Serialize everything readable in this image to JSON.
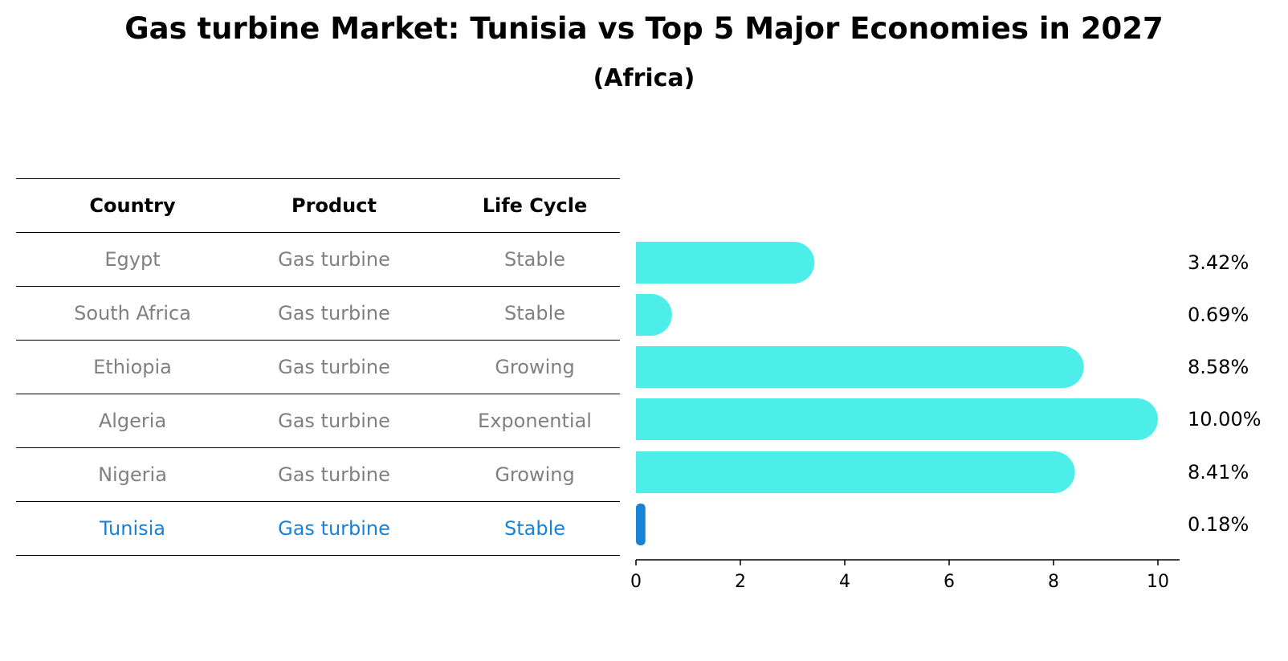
{
  "title": "Gas turbine Market: Tunisia vs Top 5 Major Economies in 2027",
  "subtitle": "(Africa)",
  "table": {
    "headers": [
      "Country",
      "Product",
      "Life Cycle"
    ],
    "rows": [
      [
        "Egypt",
        "Gas turbine",
        "Stable"
      ],
      [
        "South Africa",
        "Gas turbine",
        "Stable"
      ],
      [
        "Ethiopia",
        "Gas turbine",
        "Growing"
      ],
      [
        "Algeria",
        "Gas turbine",
        "Exponential"
      ],
      [
        "Nigeria",
        "Gas turbine",
        "Growing"
      ],
      [
        "Tunisia",
        "Gas turbine",
        "Stable"
      ]
    ],
    "highlight_row": 5
  },
  "colors": {
    "bar": "#4deeea",
    "highlight": "#1a82d6",
    "muted_text": "#808080"
  },
  "chart_data": {
    "type": "bar",
    "orientation": "horizontal",
    "categories": [
      "Egypt",
      "South Africa",
      "Ethiopia",
      "Algeria",
      "Nigeria",
      "Tunisia"
    ],
    "values": [
      3.42,
      0.69,
      8.58,
      10.0,
      8.41,
      0.18
    ],
    "value_labels": [
      "3.42%",
      "0.69%",
      "8.58%",
      "10.00%",
      "8.41%",
      "0.18%"
    ],
    "xticks": [
      0,
      2,
      4,
      6,
      8,
      10
    ],
    "xlim": [
      0,
      10.5
    ],
    "xlabel": "",
    "ylabel": "",
    "grid": false
  }
}
